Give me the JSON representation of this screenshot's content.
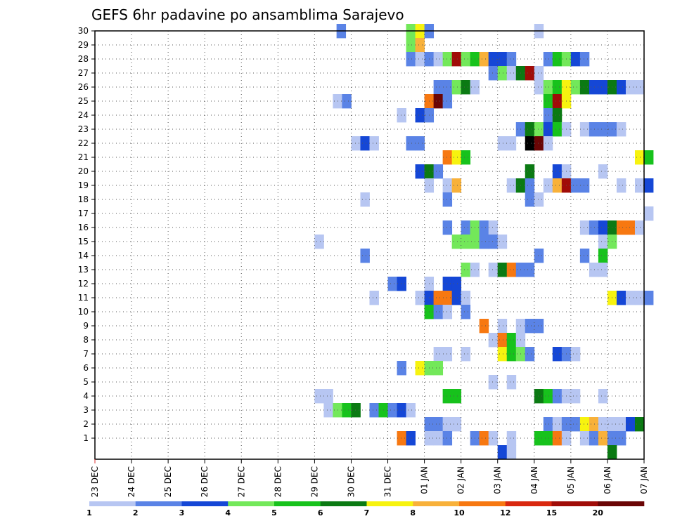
{
  "chart_data": {
    "type": "heatmap",
    "title": "GEFS 6hr padavine po ansamblima Sarajevo",
    "xlabel": "",
    "ylabel": "",
    "x_ticks": [
      "23 DEC",
      "24 DEC",
      "25 DEC",
      "26 DEC",
      "27 DEC",
      "28 DEC",
      "29 DEC",
      "30 DEC",
      "31 DEC",
      "01 JAN",
      "02 JAN",
      "03 JAN",
      "04 JAN",
      "05 JAN",
      "06 JAN",
      "07 JAN"
    ],
    "y_ticks": [
      1,
      2,
      3,
      4,
      5,
      6,
      7,
      8,
      9,
      10,
      11,
      12,
      13,
      14,
      15,
      16,
      17,
      18,
      19,
      20,
      21,
      22,
      23,
      24,
      25,
      26,
      27,
      28,
      29,
      30
    ],
    "x_range": [
      "23 DEC",
      "07 JAN"
    ],
    "y_range": [
      0,
      30
    ],
    "grid": true,
    "legend_position": "bottom",
    "colorbar": {
      "labels": [
        "1",
        "2",
        "3",
        "4",
        "5",
        "6",
        "7",
        "8",
        "10",
        "12",
        "15",
        "20"
      ],
      "colors": [
        "#b7c6f2",
        "#5a83e6",
        "#1547d6",
        "#73e85a",
        "#17c21c",
        "#0b7a13",
        "#f7f30f",
        "#f8b13a",
        "#f77811",
        "#d9280f",
        "#a00c08",
        "#6a0505"
      ]
    },
    "cell_unit_days": 0.25,
    "rows": [
      {
        "member": 30,
        "cells": [
          [
            6.6,
            2
          ],
          [
            8.5,
            4
          ],
          [
            8.75,
            7
          ],
          [
            9.0,
            2
          ],
          [
            12.0,
            1
          ]
        ]
      },
      {
        "member": 29,
        "cells": [
          [
            8.5,
            4
          ],
          [
            8.75,
            8
          ]
        ]
      },
      {
        "member": 28,
        "cells": [
          [
            8.5,
            2
          ],
          [
            8.75,
            1
          ],
          [
            9.0,
            2
          ],
          [
            9.25,
            1
          ],
          [
            9.5,
            4
          ],
          [
            9.75,
            11
          ],
          [
            10.0,
            4
          ],
          [
            10.25,
            5
          ],
          [
            10.5,
            8
          ],
          [
            10.75,
            3
          ],
          [
            11.0,
            3
          ],
          [
            11.25,
            2
          ],
          [
            12.25,
            2
          ],
          [
            12.5,
            5
          ],
          [
            12.75,
            4
          ],
          [
            13.0,
            3
          ],
          [
            13.25,
            2
          ]
        ]
      },
      {
        "member": 27,
        "cells": [
          [
            10.75,
            2
          ],
          [
            11.0,
            4
          ],
          [
            11.25,
            1
          ],
          [
            11.5,
            6
          ],
          [
            11.75,
            11
          ],
          [
            12.0,
            1
          ]
        ]
      },
      {
        "member": 26,
        "cells": [
          [
            9.25,
            2
          ],
          [
            9.5,
            2
          ],
          [
            9.75,
            4
          ],
          [
            10.0,
            6
          ],
          [
            10.25,
            1
          ],
          [
            12.0,
            1
          ],
          [
            12.25,
            4
          ],
          [
            12.5,
            5
          ],
          [
            12.75,
            7
          ],
          [
            13.0,
            4
          ],
          [
            13.25,
            6
          ],
          [
            13.5,
            3
          ],
          [
            13.75,
            3
          ],
          [
            14.0,
            6
          ],
          [
            14.25,
            3
          ],
          [
            14.5,
            1
          ],
          [
            14.75,
            1
          ]
        ]
      },
      {
        "member": 25,
        "cells": [
          [
            6.5,
            1
          ],
          [
            6.75,
            2
          ],
          [
            9.0,
            9
          ],
          [
            9.25,
            12
          ],
          [
            9.5,
            2
          ],
          [
            12.25,
            5
          ],
          [
            12.5,
            11
          ],
          [
            12.75,
            7
          ]
        ]
      },
      {
        "member": 24,
        "cells": [
          [
            8.25,
            1
          ],
          [
            8.75,
            3
          ],
          [
            9.0,
            2
          ],
          [
            12.25,
            2
          ],
          [
            12.5,
            6
          ]
        ]
      },
      {
        "member": 23,
        "cells": [
          [
            11.5,
            2
          ],
          [
            11.75,
            6
          ],
          [
            12.0,
            4
          ],
          [
            12.25,
            3
          ],
          [
            12.5,
            5
          ],
          [
            12.75,
            1
          ],
          [
            13.25,
            1
          ],
          [
            13.5,
            2
          ],
          [
            13.75,
            2
          ],
          [
            14.0,
            2
          ],
          [
            14.25,
            1
          ]
        ]
      },
      {
        "member": 22,
        "cells": [
          [
            7.0,
            1
          ],
          [
            7.25,
            3
          ],
          [
            7.5,
            1
          ],
          [
            8.5,
            2
          ],
          [
            8.75,
            2
          ],
          [
            11.0,
            1
          ],
          [
            11.25,
            1
          ],
          [
            11.75,
            13
          ],
          [
            12.0,
            12
          ],
          [
            12.25,
            1
          ]
        ]
      },
      {
        "member": 21,
        "cells": [
          [
            9.5,
            9
          ],
          [
            9.75,
            7
          ],
          [
            10.0,
            5
          ],
          [
            14.75,
            7
          ],
          [
            15.0,
            5
          ]
        ]
      },
      {
        "member": 20,
        "cells": [
          [
            8.75,
            3
          ],
          [
            9.0,
            6
          ],
          [
            9.25,
            2
          ],
          [
            11.75,
            6
          ],
          [
            12.5,
            3
          ],
          [
            12.75,
            1
          ],
          [
            13.75,
            1
          ]
        ]
      },
      {
        "member": 19,
        "cells": [
          [
            9.0,
            1
          ],
          [
            9.5,
            1
          ],
          [
            9.75,
            8
          ],
          [
            11.25,
            1
          ],
          [
            11.5,
            6
          ],
          [
            11.75,
            2
          ],
          [
            12.25,
            1
          ],
          [
            12.5,
            8
          ],
          [
            12.75,
            11
          ],
          [
            13.0,
            2
          ],
          [
            13.25,
            2
          ],
          [
            14.25,
            1
          ],
          [
            14.75,
            1
          ],
          [
            15.0,
            3
          ]
        ]
      },
      {
        "member": 18,
        "cells": [
          [
            7.25,
            1
          ],
          [
            9.5,
            2
          ],
          [
            11.75,
            2
          ],
          [
            12.0,
            1
          ]
        ]
      },
      {
        "member": 17,
        "cells": [
          [
            15.0,
            1
          ]
        ]
      },
      {
        "member": 16,
        "cells": [
          [
            9.5,
            2
          ],
          [
            10.0,
            2
          ],
          [
            10.25,
            4
          ],
          [
            10.5,
            2
          ],
          [
            10.75,
            1
          ],
          [
            13.25,
            1
          ],
          [
            13.5,
            2
          ],
          [
            13.75,
            3
          ],
          [
            14.0,
            6
          ],
          [
            14.25,
            9
          ],
          [
            14.5,
            9
          ],
          [
            14.75,
            1
          ]
        ]
      },
      {
        "member": 15,
        "cells": [
          [
            6.0,
            1
          ],
          [
            9.75,
            4
          ],
          [
            10.0,
            4
          ],
          [
            10.25,
            4
          ],
          [
            10.5,
            2
          ],
          [
            10.75,
            2
          ],
          [
            11.0,
            1
          ],
          [
            13.75,
            1
          ],
          [
            14.0,
            4
          ]
        ]
      },
      {
        "member": 14,
        "cells": [
          [
            7.25,
            2
          ],
          [
            12.0,
            2
          ],
          [
            13.25,
            2
          ],
          [
            13.75,
            5
          ]
        ]
      },
      {
        "member": 13,
        "cells": [
          [
            10.0,
            4
          ],
          [
            10.25,
            1
          ],
          [
            10.75,
            1
          ],
          [
            11.0,
            6
          ],
          [
            11.25,
            9
          ],
          [
            11.5,
            2
          ],
          [
            11.75,
            2
          ],
          [
            13.5,
            1
          ],
          [
            13.75,
            1
          ]
        ]
      },
      {
        "member": 12,
        "cells": [
          [
            8.0,
            2
          ],
          [
            8.25,
            3
          ],
          [
            9.0,
            1
          ],
          [
            9.5,
            3
          ],
          [
            9.75,
            3
          ]
        ]
      },
      {
        "member": 11,
        "cells": [
          [
            7.5,
            1
          ],
          [
            8.75,
            1
          ],
          [
            9.0,
            3
          ],
          [
            9.25,
            9
          ],
          [
            9.5,
            9
          ],
          [
            9.75,
            3
          ],
          [
            10.0,
            1
          ],
          [
            14.0,
            7
          ],
          [
            14.25,
            3
          ],
          [
            14.5,
            1
          ],
          [
            14.75,
            1
          ],
          [
            15.0,
            2
          ]
        ]
      },
      {
        "member": 10,
        "cells": [
          [
            9.0,
            5
          ],
          [
            9.25,
            2
          ],
          [
            9.5,
            1
          ],
          [
            10.0,
            2
          ]
        ]
      },
      {
        "member": 9,
        "cells": [
          [
            10.5,
            9
          ],
          [
            11.0,
            1
          ],
          [
            11.5,
            1
          ],
          [
            11.75,
            2
          ],
          [
            12.0,
            2
          ]
        ]
      },
      {
        "member": 8,
        "cells": [
          [
            10.75,
            1
          ],
          [
            11.0,
            9
          ],
          [
            11.25,
            5
          ],
          [
            11.5,
            1
          ]
        ]
      },
      {
        "member": 7,
        "cells": [
          [
            9.25,
            1
          ],
          [
            9.5,
            1
          ],
          [
            10.0,
            1
          ],
          [
            11.0,
            7
          ],
          [
            11.25,
            5
          ],
          [
            11.5,
            4
          ],
          [
            11.75,
            2
          ],
          [
            12.5,
            3
          ],
          [
            12.75,
            2
          ],
          [
            13.0,
            1
          ]
        ]
      },
      {
        "member": 6,
        "cells": [
          [
            8.25,
            2
          ],
          [
            8.75,
            7
          ],
          [
            9.0,
            4
          ],
          [
            9.25,
            4
          ]
        ]
      },
      {
        "member": 5,
        "cells": [
          [
            10.75,
            1
          ],
          [
            11.25,
            1
          ]
        ]
      },
      {
        "member": 4,
        "cells": [
          [
            6.0,
            1
          ],
          [
            6.25,
            1
          ],
          [
            9.5,
            5
          ],
          [
            9.75,
            5
          ],
          [
            12.0,
            6
          ],
          [
            12.25,
            5
          ],
          [
            12.5,
            2
          ],
          [
            12.75,
            1
          ],
          [
            13.0,
            1
          ],
          [
            13.75,
            1
          ]
        ]
      },
      {
        "member": 3,
        "cells": [
          [
            6.25,
            1
          ],
          [
            6.5,
            4
          ],
          [
            6.75,
            5
          ],
          [
            7.0,
            6
          ],
          [
            7.5,
            2
          ],
          [
            7.75,
            5
          ],
          [
            8.0,
            2
          ],
          [
            8.25,
            3
          ],
          [
            8.5,
            1
          ]
        ]
      },
      {
        "member": 2,
        "cells": [
          [
            9.0,
            2
          ],
          [
            9.25,
            2
          ],
          [
            9.5,
            1
          ],
          [
            9.75,
            1
          ],
          [
            12.25,
            2
          ],
          [
            12.5,
            1
          ],
          [
            12.75,
            2
          ],
          [
            13.0,
            2
          ],
          [
            13.25,
            7
          ],
          [
            13.5,
            8
          ],
          [
            13.75,
            1
          ],
          [
            14.0,
            1
          ],
          [
            14.25,
            1
          ],
          [
            14.5,
            3
          ],
          [
            14.75,
            6
          ]
        ]
      },
      {
        "member": 1,
        "cells": [
          [
            8.25,
            9
          ],
          [
            8.5,
            3
          ],
          [
            9.0,
            1
          ],
          [
            9.25,
            1
          ],
          [
            9.5,
            2
          ],
          [
            10.25,
            2
          ],
          [
            10.5,
            9
          ],
          [
            10.75,
            1
          ],
          [
            11.25,
            1
          ],
          [
            12.0,
            5
          ],
          [
            12.25,
            5
          ],
          [
            12.5,
            9
          ],
          [
            12.75,
            1
          ],
          [
            13.25,
            1
          ],
          [
            13.5,
            2
          ],
          [
            13.75,
            8
          ],
          [
            14.0,
            2
          ],
          [
            14.25,
            2
          ]
        ]
      },
      {
        "member": 0,
        "cells": [
          [
            11.0,
            3
          ],
          [
            11.25,
            1
          ],
          [
            14.0,
            6
          ]
        ]
      }
    ]
  }
}
